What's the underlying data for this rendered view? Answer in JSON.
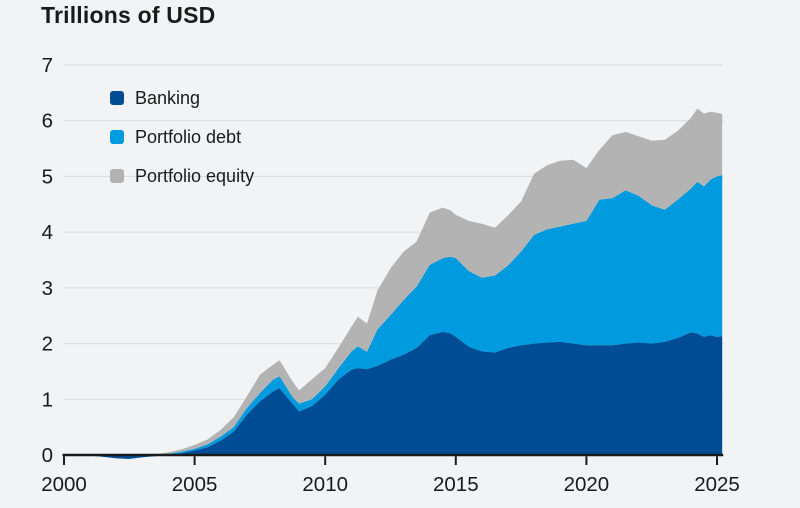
{
  "chart_data": {
    "type": "area",
    "stacked": true,
    "title": "Trillions of USD",
    "xlabel": "",
    "ylabel": "Trillions of USD",
    "xlim": [
      2000,
      2025.2
    ],
    "ylim": [
      0,
      7
    ],
    "grid": true,
    "legend_position": "top-left",
    "xticks": [
      2000,
      2005,
      2010,
      2015,
      2020,
      2025
    ],
    "yticks": [
      0,
      1,
      2,
      3,
      4,
      5,
      6,
      7
    ],
    "x": [
      2000,
      2000.5,
      2001,
      2001.5,
      2002,
      2002.5,
      2003,
      2003.5,
      2004,
      2004.5,
      2005,
      2005.5,
      2006,
      2006.5,
      2007,
      2007.5,
      2008,
      2008.25,
      2008.75,
      2009,
      2009.5,
      2010,
      2010.5,
      2011,
      2011.25,
      2011.6,
      2012,
      2012.5,
      2013,
      2013.5,
      2014,
      2014.5,
      2014.8,
      2015,
      2015.5,
      2016,
      2016.5,
      2017,
      2017.5,
      2018,
      2018.5,
      2019,
      2019.5,
      2020,
      2020.5,
      2021,
      2021.5,
      2022,
      2022.5,
      2023,
      2023.5,
      2024,
      2024.25,
      2024.5,
      2024.75,
      2025,
      2025.2
    ],
    "series": [
      {
        "name": "Banking",
        "color": "#004d96",
        "values": [
          0,
          0,
          -0.01,
          -0.03,
          -0.06,
          -0.07,
          -0.04,
          -0.02,
          0,
          0.03,
          0.08,
          0.14,
          0.26,
          0.42,
          0.72,
          0.96,
          1.14,
          1.2,
          0.92,
          0.78,
          0.88,
          1.08,
          1.35,
          1.53,
          1.56,
          1.54,
          1.6,
          1.71,
          1.8,
          1.92,
          2.15,
          2.21,
          2.18,
          2.12,
          1.94,
          1.86,
          1.84,
          1.92,
          1.97,
          2.0,
          2.02,
          2.03,
          2.0,
          1.97,
          1.97,
          1.97,
          2.0,
          2.02,
          2.0,
          2.03,
          2.1,
          2.2,
          2.18,
          2.12,
          2.15,
          2.12,
          2.13
        ]
      },
      {
        "name": "Portfolio debt",
        "color": "#009ade",
        "values": [
          0,
          0.01,
          0.01,
          0.01,
          0.01,
          0.02,
          0.01,
          0.01,
          0.02,
          0.03,
          0.03,
          0.05,
          0.07,
          0.08,
          0.12,
          0.15,
          0.21,
          0.21,
          0.12,
          0.14,
          0.12,
          0.15,
          0.2,
          0.32,
          0.39,
          0.31,
          0.65,
          0.8,
          0.98,
          1.1,
          1.26,
          1.32,
          1.38,
          1.41,
          1.36,
          1.32,
          1.38,
          1.48,
          1.68,
          1.95,
          2.03,
          2.07,
          2.15,
          2.23,
          2.61,
          2.64,
          2.75,
          2.63,
          2.48,
          2.37,
          2.48,
          2.58,
          2.72,
          2.7,
          2.79,
          2.88,
          2.89
        ]
      },
      {
        "name": "Portfolio equity",
        "color": "#b3b3b3",
        "values": [
          0.01,
          0.01,
          0.01,
          0.02,
          0.02,
          0.03,
          0.02,
          0.02,
          0.03,
          0.04,
          0.07,
          0.09,
          0.12,
          0.18,
          0.21,
          0.33,
          0.27,
          0.29,
          0.28,
          0.24,
          0.36,
          0.33,
          0.37,
          0.45,
          0.53,
          0.51,
          0.7,
          0.84,
          0.87,
          0.81,
          0.94,
          0.91,
          0.83,
          0.78,
          0.9,
          0.97,
          0.86,
          0.9,
          0.9,
          1.1,
          1.15,
          1.18,
          1.15,
          0.95,
          0.9,
          1.13,
          1.05,
          1.07,
          1.16,
          1.26,
          1.24,
          1.27,
          1.32,
          1.31,
          1.22,
          1.14,
          1.1
        ]
      }
    ],
    "colors": {
      "background": "#f2f3f4",
      "gridline": "#d9dbdd",
      "axis": "#1a1a1a",
      "tick_text": "#1a1a1a"
    }
  }
}
